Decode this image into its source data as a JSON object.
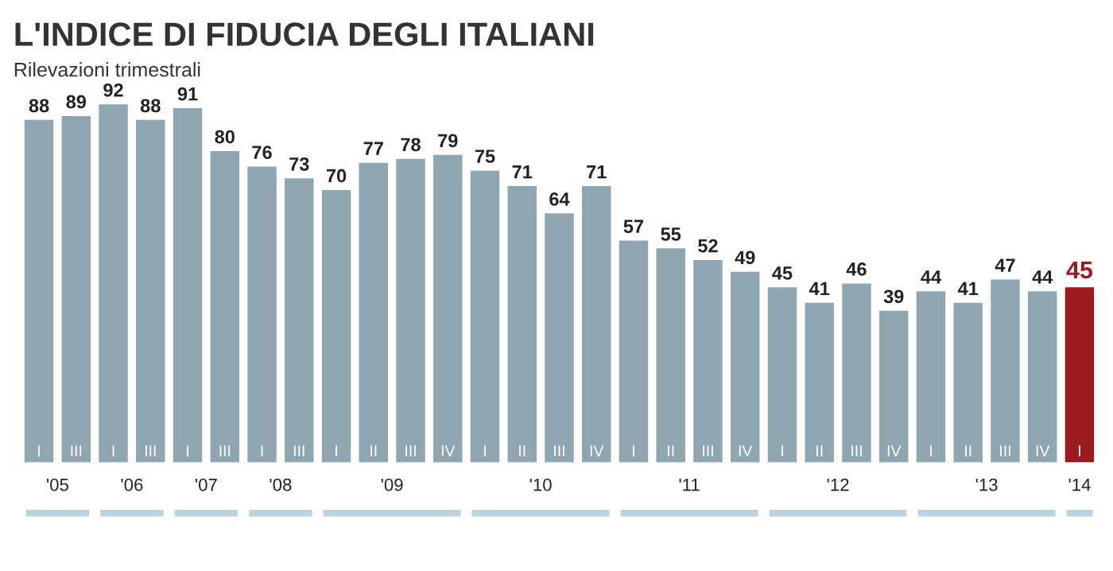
{
  "chart_data": {
    "type": "bar",
    "title": "L'INDICE DI FIDUCIA DEGLI ITALIANI",
    "subtitle": "Rilevazioni trimestrali",
    "categories": [
      "I",
      "III",
      "I",
      "III",
      "I",
      "III",
      "I",
      "III",
      "I",
      "II",
      "III",
      "IV",
      "I",
      "II",
      "III",
      "IV",
      "I",
      "II",
      "III",
      "IV",
      "I",
      "II",
      "III",
      "IV",
      "I",
      "II",
      "III",
      "IV",
      "I"
    ],
    "values": [
      88,
      89,
      92,
      88,
      91,
      80,
      76,
      73,
      70,
      77,
      78,
      79,
      75,
      71,
      64,
      71,
      57,
      55,
      52,
      49,
      45,
      41,
      46,
      39,
      44,
      41,
      47,
      44,
      45
    ],
    "colors": [
      "#8fa6b1",
      "#8fa6b1",
      "#8fa6b1",
      "#8fa6b1",
      "#8fa6b1",
      "#8fa6b1",
      "#8fa6b1",
      "#8fa6b1",
      "#8fa6b1",
      "#8fa6b1",
      "#8fa6b1",
      "#8fa6b1",
      "#8fa6b1",
      "#8fa6b1",
      "#8fa6b1",
      "#8fa6b1",
      "#8fa6b1",
      "#8fa6b1",
      "#8fa6b1",
      "#8fa6b1",
      "#8fa6b1",
      "#8fa6b1",
      "#8fa6b1",
      "#8fa6b1",
      "#8fa6b1",
      "#8fa6b1",
      "#8fa6b1",
      "#8fa6b1",
      "#9b1b1e"
    ],
    "data_labels": true,
    "annotations": [
      "'05",
      "'06",
      "'07",
      "'08",
      "'09",
      "'10",
      "'11",
      "'12",
      "'13",
      "'14"
    ]
  }
}
